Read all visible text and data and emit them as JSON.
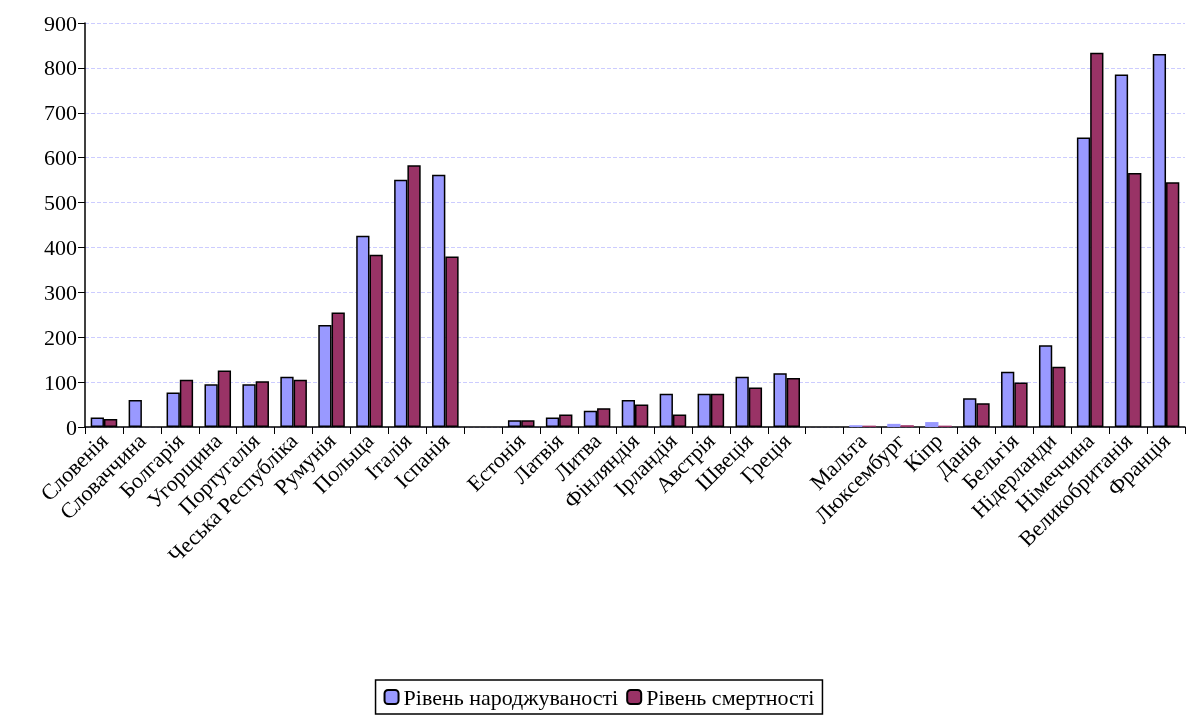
{
  "chart_data": {
    "type": "bar",
    "categories": [
      "Словенія",
      "Словаччина",
      "Болгарія",
      "Угорщина",
      "Португалія",
      "Чеська Республіка",
      "Румунія",
      "Польща",
      "Італія",
      "Іспанія",
      null,
      "Естонія",
      "Латвія",
      "Литва",
      "Фінляндія",
      "Ірландія",
      "Австрія",
      "Швеція",
      "Греція",
      null,
      "Мальта",
      "Люксембург",
      "Кіпр",
      "Данія",
      "Бельгія",
      "Нідерланди",
      "Німеччина",
      "Великобританія",
      "Франція"
    ],
    "series": [
      {
        "name": "Рівень народжуваності",
        "color": "#9999ff",
        "values": [
          21,
          60,
          77,
          95,
          95,
          112,
          227,
          426,
          551,
          562,
          null,
          15,
          21,
          36,
          60,
          74,
          74,
          112,
          120,
          null,
          4,
          7,
          11,
          64,
          123,
          182,
          645,
          785,
          831
        ]
      },
      {
        "name": "Рівень смертності",
        "color": "#993366",
        "values": [
          18,
          null,
          105,
          126,
          102,
          105,
          255,
          384,
          583,
          380,
          null,
          15,
          28,
          42,
          50,
          28,
          74,
          88,
          109,
          null,
          3,
          4,
          3,
          53,
          99,
          134,
          834,
          566,
          545
        ]
      }
    ],
    "ylim": [
      0,
      900
    ],
    "yticks": [
      0,
      100,
      200,
      300,
      400,
      500,
      600,
      700,
      800,
      900
    ],
    "grid": "y",
    "legend": "bottom"
  }
}
